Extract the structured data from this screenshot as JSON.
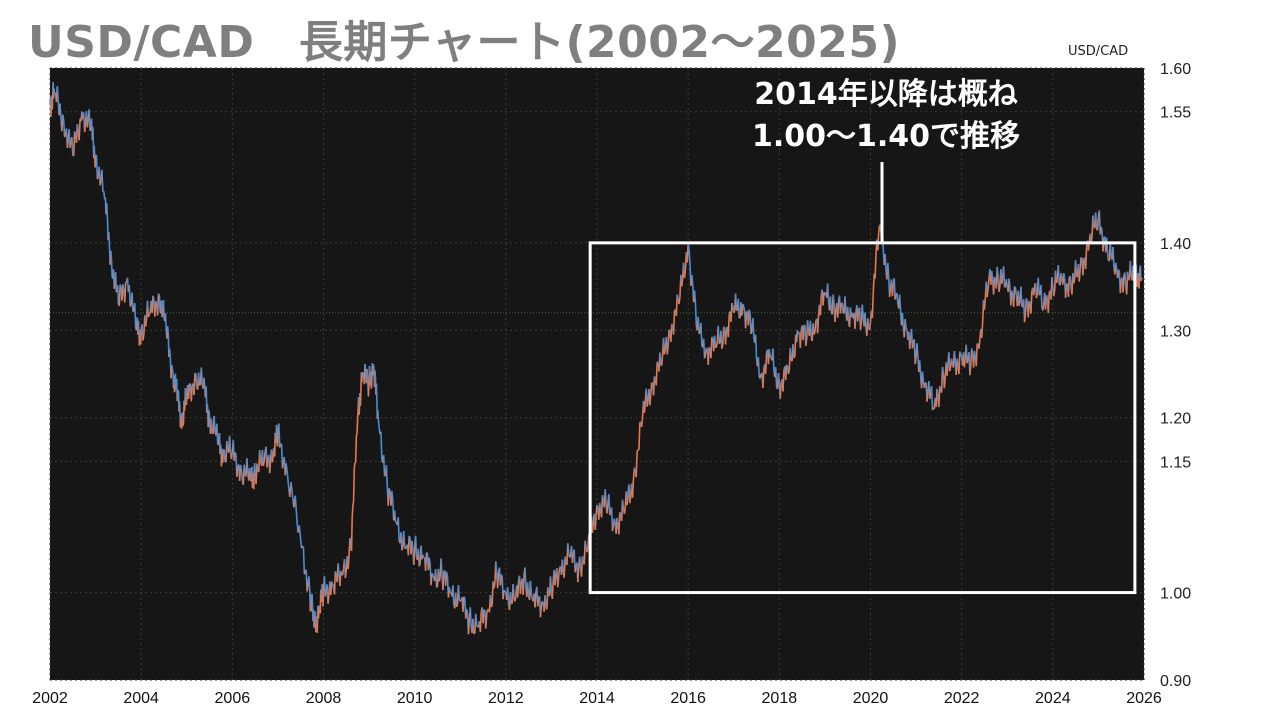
{
  "page": {
    "title": "USD/CAD　長期チャート(2002～2025)",
    "unit": "USD/CAD"
  },
  "colors": {
    "background": "#161616",
    "up": "#e8784a",
    "down": "#4a8fd6",
    "box": "#ffffff",
    "grid": "#3a3a3a",
    "ref_line": "#2f6b2f"
  },
  "chart_data": {
    "type": "line",
    "subtype": "candlestick-style price series",
    "title": "USD/CAD　長期チャート(2002～2025)",
    "xlabel": "",
    "ylabel": "USD/CAD",
    "xlim": [
      2002,
      2026
    ],
    "ylim": [
      0.9,
      1.6
    ],
    "y_ticks": [
      "0.90",
      "1.00",
      "1.15",
      "1.20",
      "1.30",
      "1.40",
      "1.55",
      "1.60"
    ],
    "x_ticks": [
      "2002",
      "2004",
      "2006",
      "2008",
      "2010",
      "2012",
      "2014",
      "2016",
      "2018",
      "2020",
      "2022",
      "2024",
      "2026"
    ],
    "grid": true,
    "legend": "none",
    "reference_line_y": 1.32,
    "series": [
      {
        "x": [
          2002.0,
          2002.1,
          2002.3,
          2002.5,
          2002.7,
          2002.9,
          2003.0,
          2003.2,
          2003.35,
          2003.5,
          2003.7,
          2003.9,
          2004.0,
          2004.2,
          2004.4,
          2004.55,
          2004.7,
          2004.8,
          2004.9,
          2005.0,
          2005.2,
          2005.4,
          2005.5,
          2005.7,
          2005.8,
          2006.0,
          2006.2,
          2006.4,
          2006.5,
          2006.7,
          2006.9,
          2007.0,
          2007.2,
          2007.5,
          2007.7,
          2007.8,
          2007.9,
          2008.0,
          2008.2,
          2008.4,
          2008.6,
          2008.75,
          2008.85,
          2009.0,
          2009.1,
          2009.2,
          2009.4,
          2009.6,
          2009.8,
          2010.0,
          2010.2,
          2010.4,
          2010.6,
          2010.8,
          2011.0,
          2011.2,
          2011.4,
          2011.6,
          2011.8,
          2012.0,
          2012.2,
          2012.4,
          2012.6,
          2012.8,
          2013.0,
          2013.2,
          2013.4,
          2013.6,
          2013.8,
          2014.0,
          2014.2,
          2014.4,
          2014.6,
          2014.8,
          2015.0,
          2015.2,
          2015.4,
          2015.6,
          2015.8,
          2016.0,
          2016.2,
          2016.4,
          2016.6,
          2016.8,
          2017.0,
          2017.2,
          2017.4,
          2017.6,
          2017.8,
          2018.0,
          2018.2,
          2018.4,
          2018.6,
          2018.8,
          2019.0,
          2019.2,
          2019.4,
          2019.6,
          2019.8,
          2020.0,
          2020.2,
          2020.4,
          2020.6,
          2020.8,
          2021.0,
          2021.2,
          2021.4,
          2021.6,
          2021.8,
          2022.0,
          2022.2,
          2022.4,
          2022.6,
          2022.8,
          2023.0,
          2023.2,
          2023.4,
          2023.6,
          2023.8,
          2024.0,
          2024.2,
          2024.4,
          2024.6,
          2024.8,
          2025.0,
          2025.2,
          2025.4,
          2025.6,
          2025.8,
          2025.95
        ],
        "values": [
          1.56,
          1.57,
          1.54,
          1.5,
          1.55,
          1.53,
          1.5,
          1.45,
          1.38,
          1.33,
          1.36,
          1.3,
          1.3,
          1.32,
          1.34,
          1.3,
          1.25,
          1.22,
          1.2,
          1.22,
          1.25,
          1.23,
          1.2,
          1.17,
          1.16,
          1.16,
          1.14,
          1.13,
          1.14,
          1.15,
          1.16,
          1.18,
          1.14,
          1.06,
          1.0,
          0.96,
          0.98,
          1.0,
          1.01,
          1.02,
          1.05,
          1.2,
          1.25,
          1.24,
          1.26,
          1.2,
          1.12,
          1.08,
          1.05,
          1.05,
          1.04,
          1.02,
          1.02,
          1.0,
          0.99,
          0.97,
          0.96,
          0.98,
          1.02,
          1.0,
          0.99,
          1.02,
          0.99,
          0.99,
          1.0,
          1.03,
          1.04,
          1.03,
          1.05,
          1.1,
          1.1,
          1.08,
          1.09,
          1.13,
          1.2,
          1.24,
          1.26,
          1.3,
          1.33,
          1.4,
          1.3,
          1.28,
          1.28,
          1.3,
          1.32,
          1.33,
          1.3,
          1.25,
          1.27,
          1.24,
          1.25,
          1.3,
          1.29,
          1.31,
          1.34,
          1.33,
          1.32,
          1.32,
          1.31,
          1.31,
          1.42,
          1.36,
          1.33,
          1.3,
          1.27,
          1.24,
          1.21,
          1.25,
          1.26,
          1.27,
          1.26,
          1.29,
          1.36,
          1.36,
          1.35,
          1.34,
          1.32,
          1.35,
          1.33,
          1.35,
          1.36,
          1.35,
          1.37,
          1.4,
          1.43,
          1.39,
          1.37,
          1.35,
          1.37,
          1.36
        ]
      }
    ],
    "annotations": [
      {
        "lines": [
          "2014年以降は概ね",
          "1.00～1.40で推移"
        ],
        "box_x": [
          2013.85,
          2025.8
        ],
        "box_y": [
          1.0,
          1.4
        ]
      }
    ]
  }
}
